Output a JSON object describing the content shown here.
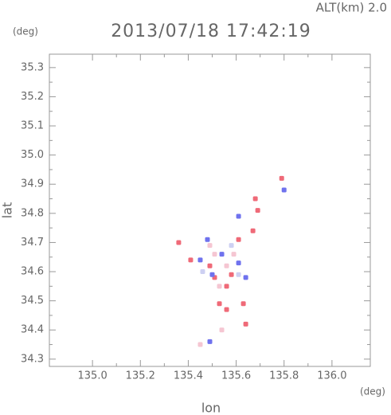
{
  "chart_data": {
    "type": "scatter",
    "title": "2013/07/18 17:42:19",
    "annotation": "ALT(km) 2.0",
    "y_unit": "(deg)",
    "x_unit": "(deg)",
    "xlabel": "lon",
    "ylabel": "lat",
    "xlim": [
      134.82,
      136.16
    ],
    "ylim": [
      34.275,
      35.346
    ],
    "xticks": [
      {
        "value": 135,
        "label": "135.0"
      },
      135.2,
      135.4,
      135.6,
      135.8,
      {
        "value": 136,
        "label": "136.0"
      }
    ],
    "yticks": [
      34.3,
      34.4,
      34.5,
      34.6,
      34.7,
      34.8,
      34.9,
      {
        "value": 35,
        "label": "35.0"
      },
      35.1,
      35.2,
      35.3
    ],
    "series": [
      {
        "color": "#f5c6d2",
        "x": [
          135.51,
          135.56,
          135.59,
          135.53,
          135.54,
          135.45,
          135.49
        ],
        "values": [
          34.66,
          34.62,
          34.66,
          34.55,
          34.4,
          34.35,
          34.69
        ]
      },
      {
        "color": "#cdd0f2",
        "x": [
          135.58,
          135.61,
          135.46
        ],
        "values": [
          34.69,
          34.59,
          34.6
        ]
      },
      {
        "color": "#ef6a78",
        "x": [
          135.79,
          135.68,
          135.69,
          135.67,
          135.36,
          135.41,
          135.61,
          135.51,
          135.56,
          135.53,
          135.63,
          135.64,
          135.56,
          135.49,
          135.58
        ],
        "values": [
          34.92,
          34.85,
          34.81,
          34.74,
          34.7,
          34.64,
          34.71,
          34.58,
          34.55,
          34.49,
          34.49,
          34.42,
          34.47,
          34.62,
          34.59
        ]
      },
      {
        "color": "#6f72ee",
        "x": [
          135.8,
          135.61,
          135.54,
          135.5,
          135.61,
          135.49,
          135.48,
          135.45,
          135.64
        ],
        "values": [
          34.88,
          34.79,
          34.66,
          34.59,
          34.63,
          34.36,
          34.71,
          34.64,
          34.58
        ]
      }
    ]
  }
}
